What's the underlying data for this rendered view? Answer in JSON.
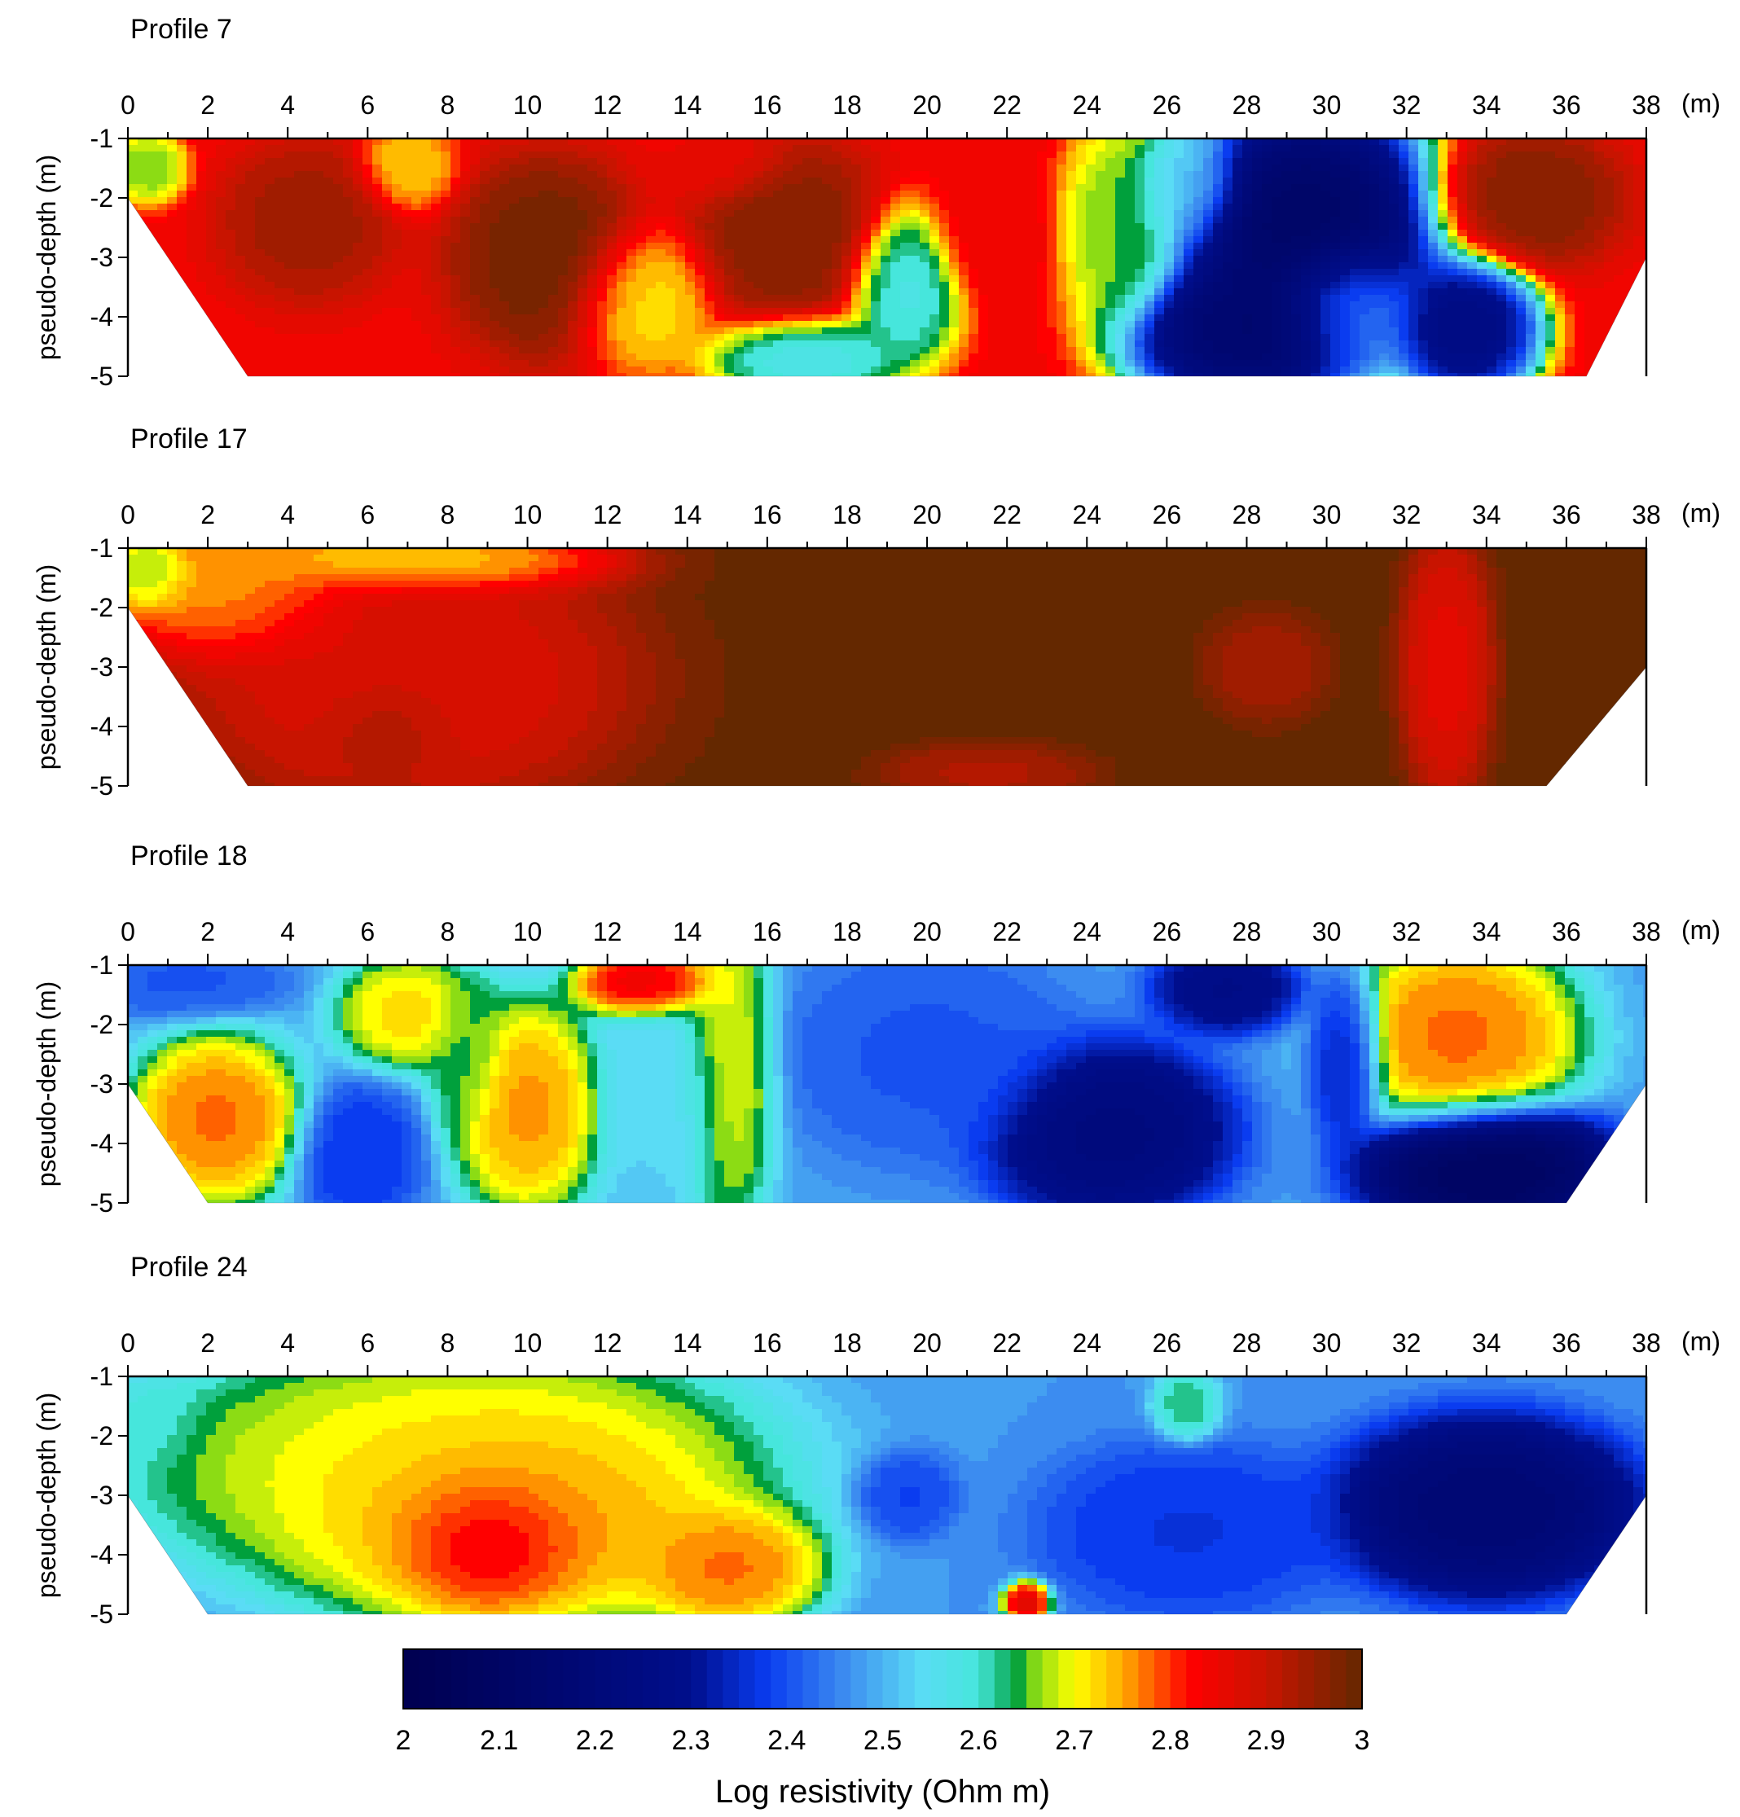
{
  "figure": {
    "x_unit": "(m)",
    "y_axis_label": "pseudo-depth (m)",
    "x_ticks": [
      0,
      2,
      4,
      6,
      8,
      10,
      12,
      14,
      16,
      18,
      20,
      22,
      24,
      26,
      28,
      30,
      32,
      34,
      36,
      38
    ],
    "y_ticks": [
      -1,
      -2,
      -3,
      -4,
      -5
    ],
    "xlim": [
      0,
      38
    ],
    "ylim": [
      -5,
      -1
    ]
  },
  "chart_data": [
    {
      "type": "heatmap",
      "title": "Profile 7",
      "ylabel": "pseudo-depth (m)",
      "xlabel": "(m)",
      "xlim": [
        0,
        38
      ],
      "ylim": [
        -5,
        -1
      ],
      "section_shape": [
        [
          0,
          -1
        ],
        [
          38,
          -1
        ],
        [
          38,
          -3
        ],
        [
          36.5,
          -5
        ],
        [
          3,
          -5
        ],
        [
          0,
          -2
        ]
      ],
      "background_log_resistivity": 2.84,
      "anomalies": [
        {
          "x": 4.5,
          "y": -2.4,
          "rx": 1.8,
          "ry": 1.1,
          "value": 2.95
        },
        {
          "x": 10.5,
          "y": -3.0,
          "rx": 2.0,
          "ry": 1.4,
          "value": 3.0
        },
        {
          "x": 16.5,
          "y": -2.6,
          "rx": 2.0,
          "ry": 1.3,
          "value": 2.98
        },
        {
          "x": 14.8,
          "y": -1.4,
          "rx": 1.5,
          "ry": 0.6,
          "value": 2.85
        },
        {
          "x": 21.5,
          "y": -2.6,
          "rx": 1.2,
          "ry": 1.0,
          "value": 2.85
        },
        {
          "x": 7.0,
          "y": -1.5,
          "rx": 1.0,
          "ry": 0.6,
          "value": 2.72
        },
        {
          "x": 12.8,
          "y": -3.7,
          "rx": 1.5,
          "ry": 1.0,
          "value": 2.7
        },
        {
          "x": 19.5,
          "y": -3.5,
          "rx": 1.2,
          "ry": 1.1,
          "value": 2.56
        },
        {
          "x": 17.0,
          "y": -4.7,
          "rx": 2.0,
          "ry": 0.6,
          "value": 2.55
        },
        {
          "x": 24.8,
          "y": -2.5,
          "rx": 1.2,
          "ry": 1.5,
          "value": 2.64
        },
        {
          "x": 26.5,
          "y": -1.8,
          "rx": 1.2,
          "ry": 0.9,
          "value": 2.53
        },
        {
          "x": 29.5,
          "y": -2.5,
          "rx": 2.8,
          "ry": 1.8,
          "value": 2.05
        },
        {
          "x": 28.0,
          "y": -4.3,
          "rx": 2.5,
          "ry": 1.0,
          "value": 2.1
        },
        {
          "x": 30.5,
          "y": -3.8,
          "rx": 1.5,
          "ry": 1.0,
          "value": 2.5
        },
        {
          "x": 33.5,
          "y": -4.2,
          "rx": 1.5,
          "ry": 1.0,
          "value": 2.2
        },
        {
          "x": 35.0,
          "y": -2.0,
          "rx": 2.0,
          "ry": 1.0,
          "value": 2.98
        },
        {
          "x": 0.5,
          "y": -1.5,
          "rx": 0.8,
          "ry": 0.5,
          "value": 2.64
        }
      ]
    },
    {
      "type": "heatmap",
      "title": "Profile 17",
      "ylabel": "pseudo-depth (m)",
      "xlabel": "(m)",
      "xlim": [
        0,
        38
      ],
      "ylim": [
        -5,
        -1
      ],
      "section_shape": [
        [
          0,
          -1
        ],
        [
          38,
          -1
        ],
        [
          38,
          -3
        ],
        [
          35.5,
          -5
        ],
        [
          3,
          -5
        ],
        [
          0,
          -2
        ]
      ],
      "background_log_resistivity": 3.0,
      "anomalies": [
        {
          "x": 2.5,
          "y": -1.7,
          "rx": 2.5,
          "ry": 1.0,
          "value": 2.74
        },
        {
          "x": 7.0,
          "y": -1.2,
          "rx": 4.0,
          "ry": 0.5,
          "value": 2.7
        },
        {
          "x": 0.5,
          "y": -1.4,
          "rx": 1.0,
          "ry": 0.6,
          "value": 2.62
        },
        {
          "x": 7.0,
          "y": -3.2,
          "rx": 4.5,
          "ry": 1.8,
          "value": 2.86
        },
        {
          "x": 6.5,
          "y": -4.0,
          "rx": 1.5,
          "ry": 0.8,
          "value": 2.95
        },
        {
          "x": 33.0,
          "y": -3.0,
          "rx": 0.9,
          "ry": 1.8,
          "value": 2.85
        },
        {
          "x": 21.5,
          "y": -4.8,
          "rx": 2.0,
          "ry": 0.4,
          "value": 2.92
        },
        {
          "x": 28.5,
          "y": -3.0,
          "rx": 1.2,
          "ry": 0.7,
          "value": 2.93
        }
      ]
    },
    {
      "type": "heatmap",
      "title": "Profile 18",
      "ylabel": "pseudo-depth (m)",
      "xlabel": "(m)",
      "xlim": [
        0,
        38
      ],
      "ylim": [
        -5,
        -1
      ],
      "section_shape": [
        [
          0,
          -1
        ],
        [
          38,
          -1
        ],
        [
          38,
          -3
        ],
        [
          36,
          -5
        ],
        [
          2,
          -5
        ],
        [
          0,
          -3
        ]
      ],
      "background_log_resistivity": 2.48,
      "anomalies": [
        {
          "x": 2.2,
          "y": -3.6,
          "rx": 1.8,
          "ry": 1.2,
          "value": 2.8
        },
        {
          "x": 7.0,
          "y": -1.8,
          "rx": 1.5,
          "ry": 0.8,
          "value": 2.74
        },
        {
          "x": 8.5,
          "y": -2.5,
          "rx": 0.8,
          "ry": 1.2,
          "value": 2.64
        },
        {
          "x": 10.0,
          "y": -3.4,
          "rx": 1.6,
          "ry": 1.5,
          "value": 2.78
        },
        {
          "x": 5.8,
          "y": -4.2,
          "rx": 1.3,
          "ry": 1.0,
          "value": 2.36
        },
        {
          "x": 1.5,
          "y": -1.3,
          "rx": 2.0,
          "ry": 0.5,
          "value": 2.4
        },
        {
          "x": 13.0,
          "y": -1.3,
          "rx": 1.5,
          "ry": 0.5,
          "value": 2.88
        },
        {
          "x": 15.0,
          "y": -2.8,
          "rx": 1.0,
          "ry": 2.2,
          "value": 2.72
        },
        {
          "x": 13.5,
          "y": -3.3,
          "rx": 1.5,
          "ry": 1.5,
          "value": 2.54
        },
        {
          "x": 20.0,
          "y": -2.5,
          "rx": 3.0,
          "ry": 1.5,
          "value": 2.4
        },
        {
          "x": 24.5,
          "y": -3.8,
          "rx": 2.5,
          "ry": 1.2,
          "value": 2.2
        },
        {
          "x": 27.5,
          "y": -1.4,
          "rx": 1.5,
          "ry": 0.6,
          "value": 2.25
        },
        {
          "x": 33.3,
          "y": -2.2,
          "rx": 2.5,
          "ry": 1.4,
          "value": 2.8
        },
        {
          "x": 34.0,
          "y": -4.4,
          "rx": 2.5,
          "ry": 0.9,
          "value": 2.05
        },
        {
          "x": 30.5,
          "y": -2.5,
          "rx": 0.8,
          "ry": 1.2,
          "value": 2.3
        }
      ]
    },
    {
      "type": "heatmap",
      "title": "Profile 24",
      "ylabel": "pseudo-depth (m)",
      "xlabel": "(m)",
      "xlim": [
        0,
        38
      ],
      "ylim": [
        -5,
        -1
      ],
      "section_shape": [
        [
          0,
          -1
        ],
        [
          38,
          -1
        ],
        [
          38,
          -3
        ],
        [
          36,
          -5
        ],
        [
          2,
          -5
        ],
        [
          0,
          -3
        ]
      ],
      "background_log_resistivity": 2.47,
      "anomalies": [
        {
          "x": 8.0,
          "y": -2.5,
          "rx": 6.5,
          "ry": 1.8,
          "value": 2.72
        },
        {
          "x": 9.5,
          "y": -3.3,
          "rx": 4.5,
          "ry": 1.6,
          "value": 2.8
        },
        {
          "x": 9.0,
          "y": -3.7,
          "rx": 2.0,
          "ry": 1.0,
          "value": 2.92
        },
        {
          "x": 15.0,
          "y": -4.2,
          "rx": 2.0,
          "ry": 0.9,
          "value": 2.8
        },
        {
          "x": 0.5,
          "y": -1.8,
          "rx": 1.0,
          "ry": 0.6,
          "value": 2.6
        },
        {
          "x": 26.5,
          "y": -1.5,
          "rx": 0.7,
          "ry": 0.5,
          "value": 2.64
        },
        {
          "x": 22.5,
          "y": -4.8,
          "rx": 0.5,
          "ry": 0.3,
          "value": 2.9
        },
        {
          "x": 26.5,
          "y": -3.6,
          "rx": 3.0,
          "ry": 1.2,
          "value": 2.36
        },
        {
          "x": 34.0,
          "y": -3.2,
          "rx": 3.0,
          "ry": 1.2,
          "value": 2.15
        },
        {
          "x": 19.5,
          "y": -3.0,
          "rx": 1.0,
          "ry": 0.6,
          "value": 2.38
        }
      ]
    }
  ],
  "colorbar": {
    "label": "Log resistivity (Ohm m)",
    "min": 2,
    "max": 3,
    "ticks": [
      "2",
      "2.1",
      "2.2",
      "2.3",
      "2.4",
      "2.5",
      "2.6",
      "2.7",
      "2.8",
      "2.9",
      "3"
    ],
    "stops": [
      {
        "v": 2.0,
        "color": "#000050"
      },
      {
        "v": 2.3,
        "color": "#000e8c"
      },
      {
        "v": 2.38,
        "color": "#0a3cf0"
      },
      {
        "v": 2.46,
        "color": "#3c8cf0"
      },
      {
        "v": 2.54,
        "color": "#5adcf5"
      },
      {
        "v": 2.6,
        "color": "#46e6dc"
      },
      {
        "v": 2.64,
        "color": "#00a03c"
      },
      {
        "v": 2.66,
        "color": "#8cdc14"
      },
      {
        "v": 2.7,
        "color": "#ffff00"
      },
      {
        "v": 2.75,
        "color": "#ffaa00"
      },
      {
        "v": 2.82,
        "color": "#ff0000"
      },
      {
        "v": 2.9,
        "color": "#c81400"
      },
      {
        "v": 3.0,
        "color": "#642800"
      }
    ]
  }
}
